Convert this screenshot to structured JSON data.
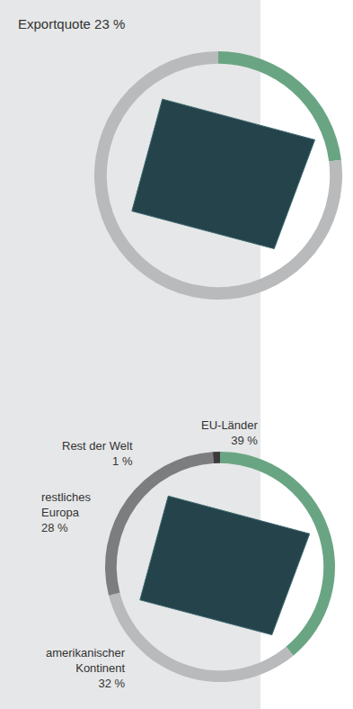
{
  "chart_data": [
    {
      "type": "pie",
      "title": "Exportquote 23 %",
      "categories": [
        null,
        null
      ],
      "values": [
        23,
        77
      ],
      "colors": [
        "#6aa583",
        "#b9babc"
      ]
    },
    {
      "type": "pie",
      "categories": [
        "EU-Länder",
        "amerikanischer Kontinent",
        "restliches Europa",
        "Rest der Welt"
      ],
      "values": [
        39,
        32,
        28,
        1
      ],
      "value_labels": [
        "39 %",
        "32 %",
        "28 %",
        "1 %"
      ],
      "data_labels": true,
      "colors": [
        "#6aa583",
        "#b9babc",
        "#7c7d7f",
        "#3b3b3b"
      ]
    }
  ]
}
